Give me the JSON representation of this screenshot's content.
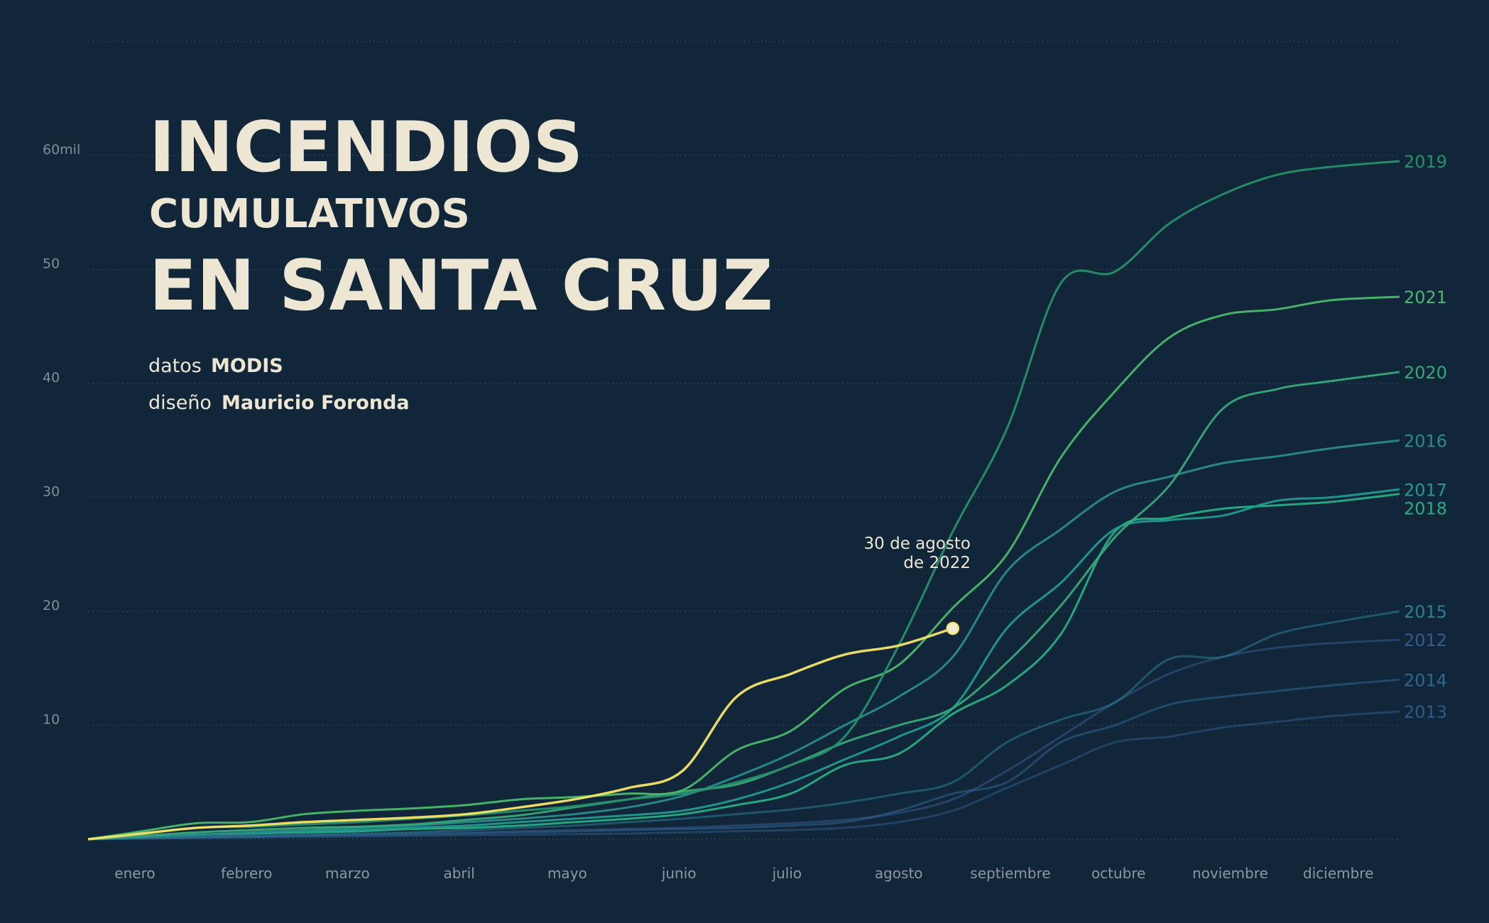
{
  "chart_data": {
    "type": "line",
    "title": [
      "INCENDIOS",
      "CUMULATIVOS",
      "EN SANTA CRUZ"
    ],
    "credits": [
      {
        "label": "datos",
        "value": "MODIS"
      },
      {
        "label": "diseño",
        "value": "Mauricio Foronda"
      }
    ],
    "annotation": [
      "30 de agosto",
      "de 2022"
    ],
    "x": [
      1,
      16,
      31,
      46,
      61,
      76,
      91,
      106,
      121,
      136,
      151,
      166,
      181,
      196,
      211,
      226,
      241,
      256,
      271,
      286,
      301,
      316,
      331,
      346,
      365
    ],
    "xlim": [
      1,
      365
    ],
    "xticks": [
      {
        "value": 14,
        "label": "enero"
      },
      {
        "value": 45,
        "label": "febrero"
      },
      {
        "value": 73,
        "label": "marzo"
      },
      {
        "value": 104,
        "label": "abril"
      },
      {
        "value": 134,
        "label": "mayo"
      },
      {
        "value": 165,
        "label": "junio"
      },
      {
        "value": 195,
        "label": "julio"
      },
      {
        "value": 226,
        "label": "agosto"
      },
      {
        "value": 257,
        "label": "septiembre"
      },
      {
        "value": 287,
        "label": "octubre"
      },
      {
        "value": 318,
        "label": "noviembre"
      },
      {
        "value": 348,
        "label": "diciembre"
      }
    ],
    "ylim": [
      0,
      70
    ],
    "yticks": [
      10,
      20,
      30,
      40,
      50,
      {
        "value": 60,
        "label": "60mil"
      }
    ],
    "grid": true,
    "series": [
      {
        "name": "2013",
        "color": "#2c5a86",
        "values": [
          0,
          0.05,
          0.1,
          0.15,
          0.2,
          0.25,
          0.3,
          0.35,
          0.4,
          0.45,
          0.5,
          0.6,
          0.7,
          0.8,
          1,
          1.5,
          2.5,
          4.5,
          6.5,
          8.5,
          9,
          9.8,
          10.3,
          10.8,
          11.2
        ]
      },
      {
        "name": "2014",
        "color": "#2d6690",
        "values": [
          0,
          0.1,
          0.15,
          0.2,
          0.3,
          0.35,
          0.4,
          0.5,
          0.6,
          0.7,
          0.8,
          0.9,
          1,
          1.2,
          1.5,
          2.5,
          4,
          5,
          8.5,
          10,
          11.8,
          12.5,
          13,
          13.5,
          14
        ]
      },
      {
        "name": "2012",
        "color": "#365a8e",
        "values": [
          0,
          0.1,
          0.2,
          0.25,
          0.3,
          0.4,
          0.5,
          0.6,
          0.7,
          0.8,
          0.9,
          1,
          1.2,
          1.4,
          1.7,
          2.3,
          3.5,
          6,
          9,
          12,
          14.5,
          16,
          16.8,
          17.2,
          17.5
        ]
      },
      {
        "name": "2015",
        "color": "#2a7f92",
        "values": [
          0,
          0.1,
          0.2,
          0.3,
          0.4,
          0.5,
          0.6,
          0.8,
          1,
          1.2,
          1.5,
          1.8,
          2.2,
          2.6,
          3.2,
          4,
          5,
          8.5,
          10.5,
          12,
          15.8,
          16,
          18,
          19,
          20
        ]
      },
      {
        "name": "2018",
        "color": "#27ad82",
        "values": [
          0,
          0.2,
          0.4,
          0.5,
          0.6,
          0.7,
          0.9,
          1,
          1.2,
          1.5,
          1.8,
          2.2,
          3,
          4,
          6.5,
          7.5,
          11,
          13.5,
          18,
          27,
          28.2,
          29,
          29.3,
          29.6,
          30.3
        ]
      },
      {
        "name": "2017",
        "color": "#229a8e",
        "values": [
          0,
          0.2,
          0.4,
          0.5,
          0.7,
          0.8,
          1,
          1.2,
          1.5,
          1.8,
          2.1,
          2.5,
          3.5,
          5,
          7,
          9,
          11.5,
          18.5,
          22.5,
          27.2,
          28,
          28.4,
          29.7,
          30,
          30.7
        ]
      },
      {
        "name": "2016",
        "color": "#2a8b8b",
        "values": [
          0,
          0.2,
          0.4,
          0.6,
          0.8,
          1,
          1.2,
          1.5,
          1.8,
          2.2,
          2.8,
          3.8,
          5.5,
          7.5,
          10,
          12.5,
          16,
          23.5,
          27.2,
          30.5,
          31.8,
          33,
          33.6,
          34.3,
          35
        ]
      },
      {
        "name": "2020",
        "color": "#38a877",
        "values": [
          0,
          0.3,
          0.6,
          0.8,
          1,
          1.1,
          1.3,
          1.7,
          2.1,
          2.8,
          3.5,
          4.2,
          4.8,
          6.5,
          8.5,
          10,
          11.5,
          15.5,
          20.5,
          26.5,
          31,
          37.8,
          39.5,
          40.2,
          41
        ]
      },
      {
        "name": "2021",
        "color": "#4cb86a",
        "values": [
          0,
          0.7,
          1.4,
          1.5,
          2.2,
          2.5,
          2.7,
          3,
          3.5,
          3.7,
          4,
          4.3,
          7.8,
          9.5,
          13.2,
          15.3,
          20.3,
          25,
          33.5,
          39.3,
          44,
          46,
          46.5,
          47.3,
          47.6
        ]
      },
      {
        "name": "2019",
        "color": "#26906c",
        "values": [
          0,
          0.5,
          1,
          1.1,
          1.3,
          1.5,
          1.8,
          2.1,
          2.5,
          2.9,
          3.5,
          4,
          5,
          6.5,
          9,
          17,
          27,
          36,
          48.8,
          49.8,
          54,
          56.6,
          58.3,
          59,
          59.5
        ]
      },
      {
        "color": "#f3e46b",
        "values": [
          0,
          0.5,
          1,
          1.2,
          1.5,
          1.7,
          1.9,
          2.2,
          2.8,
          3.5,
          4.5,
          6,
          12.5,
          14.5,
          16.2,
          17,
          18.5,
          null,
          null,
          null,
          null,
          null,
          null,
          null,
          null
        ]
      }
    ]
  }
}
